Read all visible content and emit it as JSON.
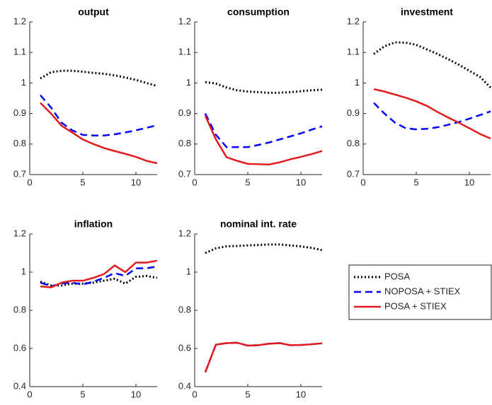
{
  "chart_data": [
    {
      "type": "line",
      "title": "output",
      "x": [
        1,
        2,
        3,
        4,
        5,
        6,
        7,
        8,
        9,
        10,
        11,
        12
      ],
      "xlim": [
        0,
        12
      ],
      "xticks": [
        0,
        5,
        10
      ],
      "ylim": [
        0.7,
        1.2
      ],
      "yticks": [
        0.7,
        0.8,
        0.9,
        1,
        1.1,
        1.2
      ],
      "series": [
        {
          "values": [
            1.015,
            1.035,
            1.04,
            1.04,
            1.037,
            1.033,
            1.03,
            1.025,
            1.018,
            1.01,
            1.0,
            0.99
          ]
        },
        {
          "values": [
            0.96,
            0.92,
            0.87,
            0.845,
            0.83,
            0.828,
            0.828,
            0.832,
            0.838,
            0.845,
            0.853,
            0.862
          ]
        },
        {
          "values": [
            0.935,
            0.9,
            0.86,
            0.838,
            0.815,
            0.8,
            0.787,
            0.777,
            0.768,
            0.758,
            0.745,
            0.737
          ]
        }
      ]
    },
    {
      "type": "line",
      "title": "consumption",
      "x": [
        1,
        2,
        3,
        4,
        5,
        6,
        7,
        8,
        9,
        10,
        11,
        12
      ],
      "xlim": [
        0,
        12
      ],
      "xticks": [
        0,
        5,
        10
      ],
      "ylim": [
        0.7,
        1.2
      ],
      "yticks": [
        0.7,
        0.8,
        0.9,
        1,
        1.1,
        1.2
      ],
      "series": [
        {
          "values": [
            1.003,
            0.998,
            0.985,
            0.976,
            0.972,
            0.97,
            0.968,
            0.968,
            0.97,
            0.973,
            0.976,
            0.978
          ]
        },
        {
          "values": [
            0.9,
            0.83,
            0.79,
            0.79,
            0.79,
            0.797,
            0.805,
            0.815,
            0.825,
            0.835,
            0.847,
            0.858
          ]
        },
        {
          "values": [
            0.893,
            0.815,
            0.757,
            0.745,
            0.735,
            0.734,
            0.733,
            0.74,
            0.75,
            0.758,
            0.767,
            0.777
          ]
        }
      ]
    },
    {
      "type": "line",
      "title": "investment",
      "x": [
        1,
        2,
        3,
        4,
        5,
        6,
        7,
        8,
        9,
        10,
        11,
        12
      ],
      "xlim": [
        0,
        12
      ],
      "xticks": [
        0,
        5,
        10
      ],
      "ylim": [
        0.7,
        1.2
      ],
      "yticks": [
        0.7,
        0.8,
        0.9,
        1,
        1.1,
        1.2
      ],
      "series": [
        {
          "values": [
            1.095,
            1.12,
            1.133,
            1.132,
            1.125,
            1.11,
            1.095,
            1.078,
            1.06,
            1.04,
            1.02,
            0.985
          ]
        },
        {
          "values": [
            0.935,
            0.9,
            0.87,
            0.852,
            0.848,
            0.85,
            0.855,
            0.863,
            0.872,
            0.883,
            0.895,
            0.907
          ]
        },
        {
          "values": [
            0.98,
            0.972,
            0.962,
            0.952,
            0.94,
            0.925,
            0.905,
            0.887,
            0.87,
            0.852,
            0.833,
            0.818
          ]
        }
      ]
    },
    {
      "type": "line",
      "title": "inflation",
      "x": [
        1,
        2,
        3,
        4,
        5,
        6,
        7,
        8,
        9,
        10,
        11,
        12
      ],
      "xlim": [
        0,
        12
      ],
      "xticks": [
        0,
        5,
        10
      ],
      "ylim": [
        0.4,
        1.2
      ],
      "yticks": [
        0.4,
        0.6,
        0.8,
        1,
        1.2
      ],
      "series": [
        {
          "values": [
            0.95,
            0.93,
            0.93,
            0.94,
            0.94,
            0.945,
            0.955,
            0.965,
            0.94,
            0.975,
            0.98,
            0.97
          ]
        },
        {
          "values": [
            0.945,
            0.925,
            0.94,
            0.945,
            0.935,
            0.95,
            0.97,
            0.995,
            0.98,
            1.02,
            1.02,
            1.03
          ]
        },
        {
          "values": [
            0.925,
            0.92,
            0.945,
            0.955,
            0.955,
            0.97,
            0.99,
            1.035,
            1.0,
            1.05,
            1.05,
            1.06
          ]
        }
      ]
    },
    {
      "type": "line",
      "title": "nominal int. rate",
      "x": [
        1,
        2,
        3,
        4,
        5,
        6,
        7,
        8,
        9,
        10,
        11,
        12
      ],
      "xlim": [
        0,
        12
      ],
      "xticks": [
        0,
        5,
        10
      ],
      "ylim": [
        0.4,
        1.2
      ],
      "yticks": [
        0.4,
        0.6,
        0.8,
        1,
        1.2
      ],
      "series": [
        {
          "values": [
            1.1,
            1.125,
            1.135,
            1.137,
            1.14,
            1.142,
            1.145,
            1.145,
            1.14,
            1.135,
            1.127,
            1.115
          ]
        },
        {
          "values": [
            0.475,
            0.62,
            0.628,
            0.63,
            0.615,
            0.617,
            0.625,
            0.628,
            0.617,
            0.618,
            0.622,
            0.627
          ]
        },
        {
          "values": [
            0.475,
            0.62,
            0.628,
            0.63,
            0.615,
            0.617,
            0.625,
            0.628,
            0.617,
            0.618,
            0.622,
            0.627
          ]
        }
      ]
    }
  ],
  "legend": [
    {
      "name": "POSA",
      "color": "#000000",
      "dash": "dotted"
    },
    {
      "name": "NOPOSA + STIEX",
      "color": "#0000ff",
      "dash": "dashed"
    },
    {
      "name": "POSA + STIEX",
      "color": "#e31a1c",
      "dash": "solid"
    }
  ]
}
